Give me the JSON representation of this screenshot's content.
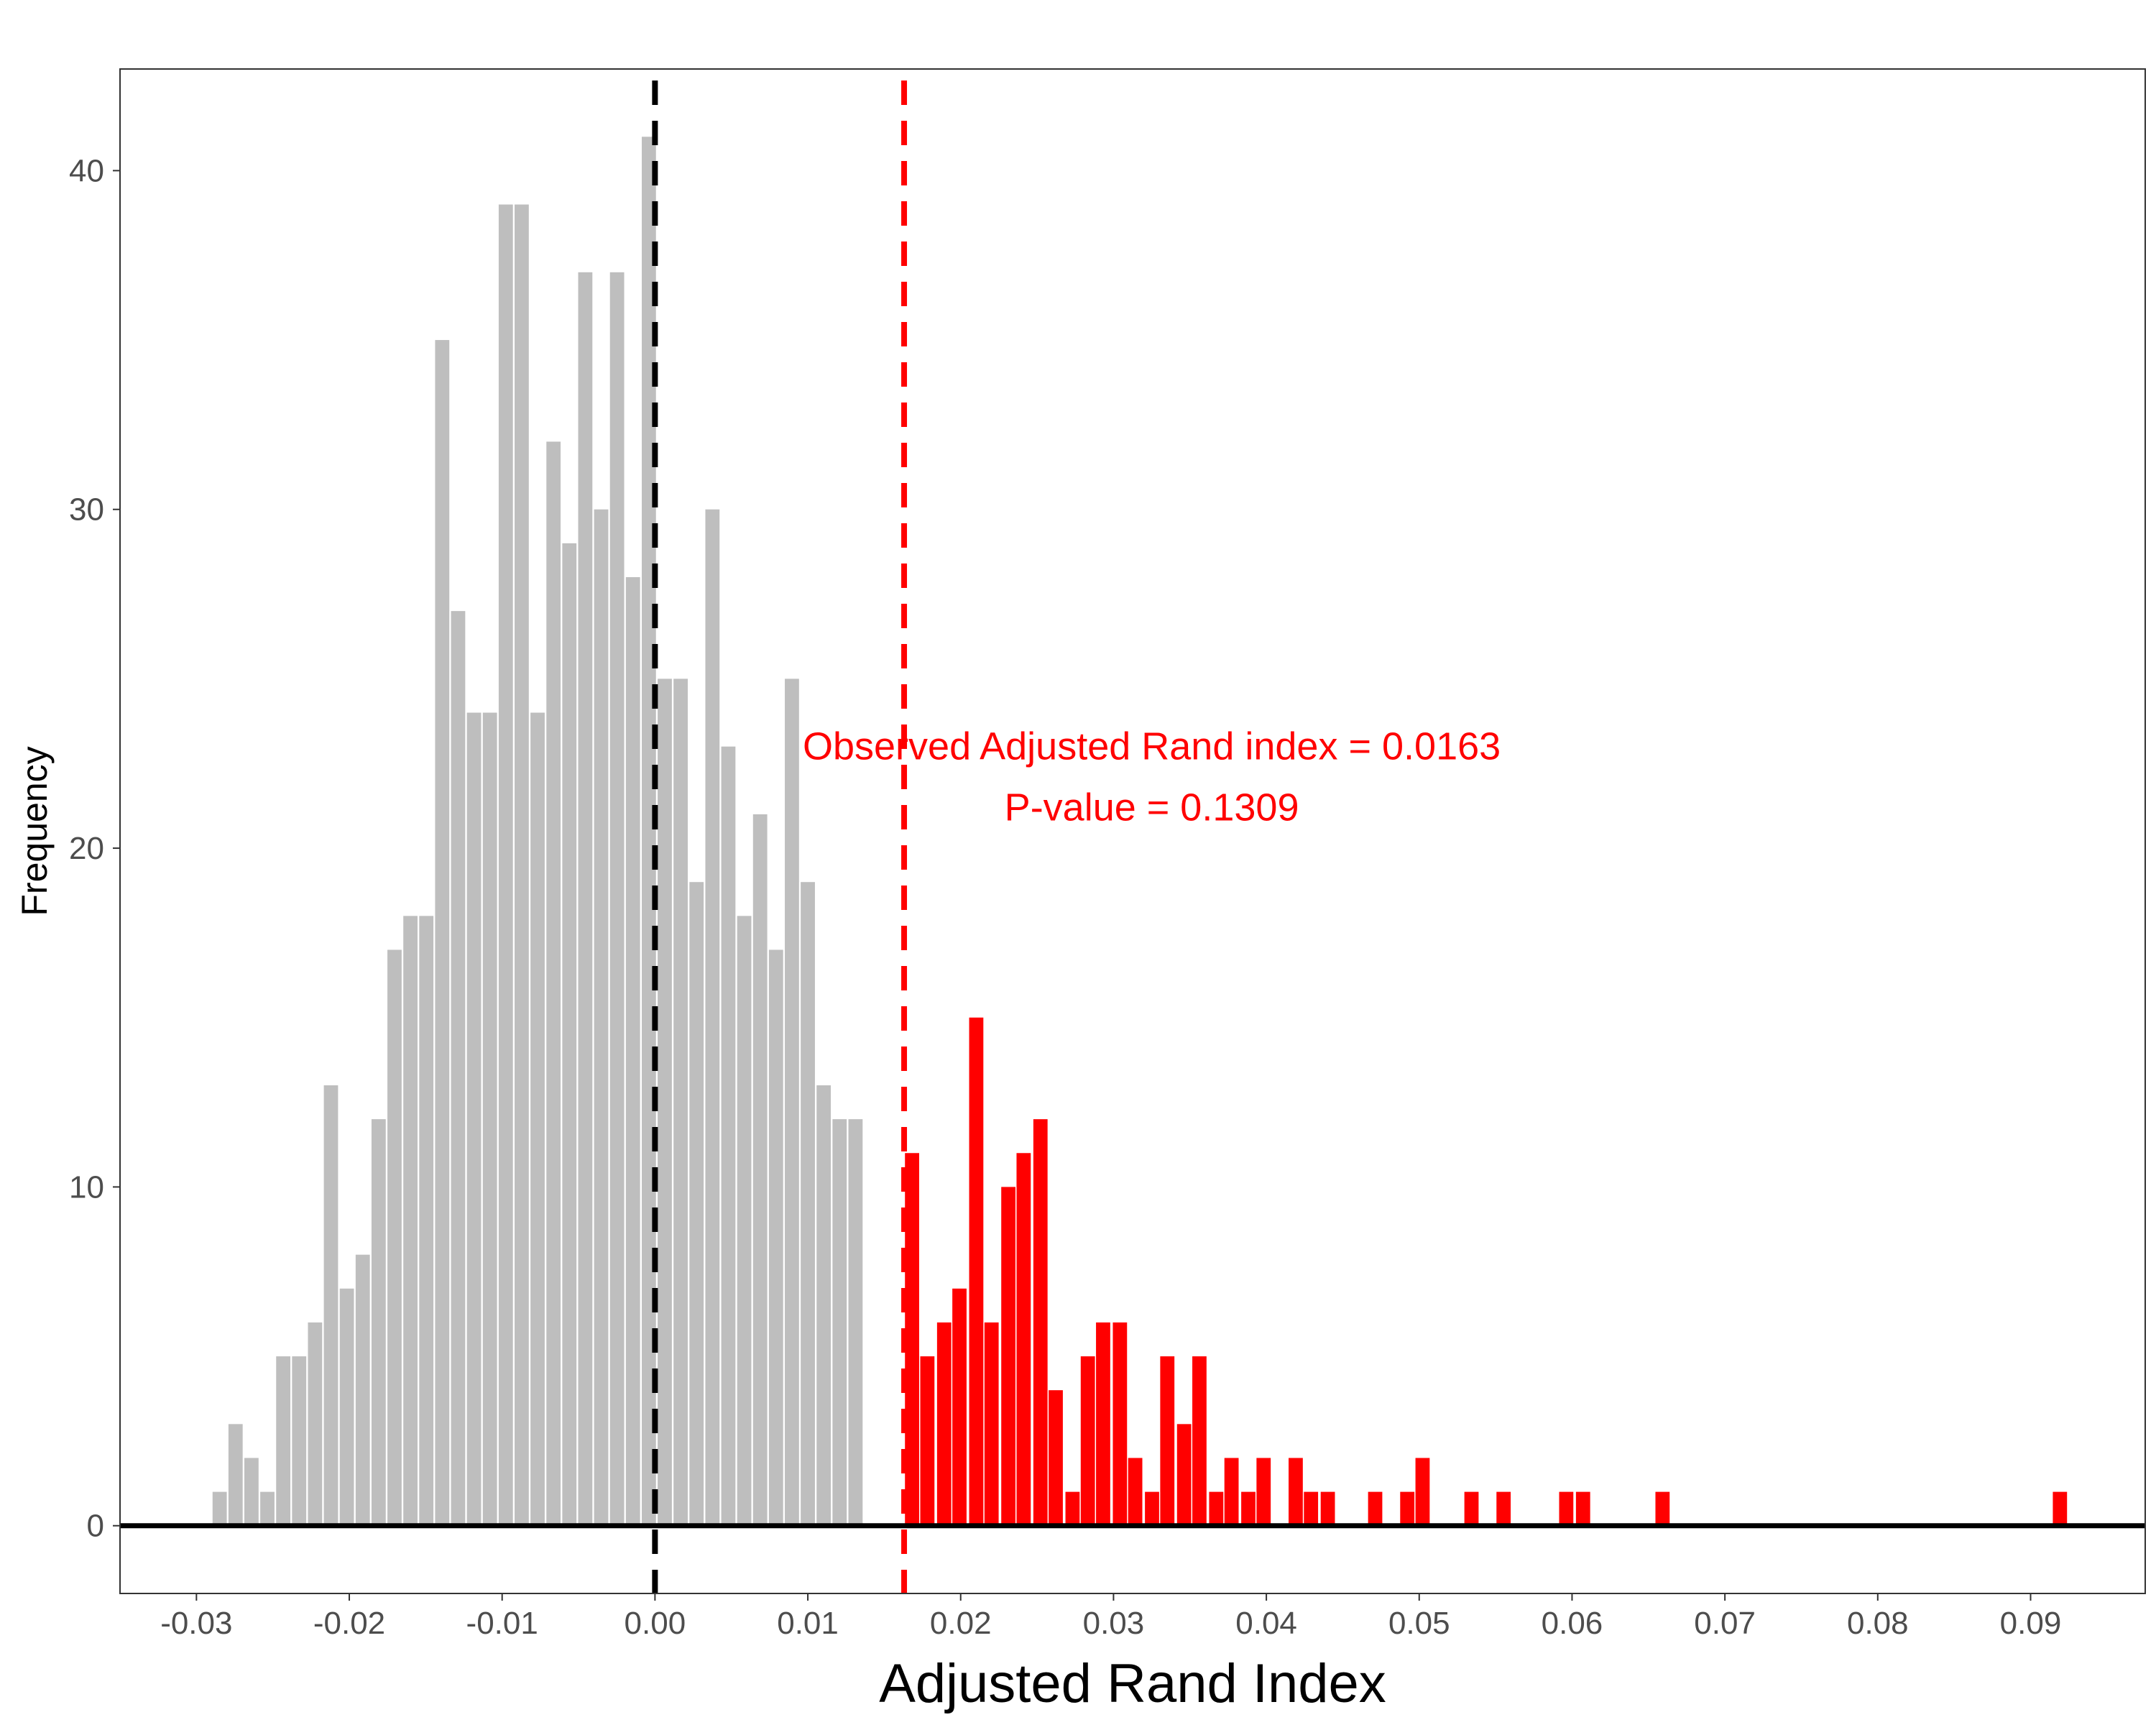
{
  "chart_data": {
    "type": "bar",
    "title": "",
    "xlabel": "Adjusted Rand Index",
    "ylabel": "Frequency",
    "xlim": [
      -0.035,
      0.0975
    ],
    "ylim": [
      -2,
      43
    ],
    "x_ticks": [
      -0.03,
      -0.02,
      -0.01,
      0.0,
      0.01,
      0.02,
      0.03,
      0.04,
      0.05,
      0.06,
      0.07,
      0.08,
      0.09
    ],
    "x_tick_labels": [
      "-0.03",
      "-0.02",
      "-0.01",
      "0.00",
      "0.01",
      "0.02",
      "0.03",
      "0.04",
      "0.05",
      "0.06",
      "0.07",
      "0.08",
      "0.09"
    ],
    "y_ticks": [
      0,
      10,
      20,
      30,
      40
    ],
    "y_tick_labels": [
      "0",
      "10",
      "20",
      "30",
      "40"
    ],
    "grid": false,
    "bin_start": -0.029,
    "bin_width": 0.00104,
    "series": [
      {
        "color": "#bebebe",
        "values": [
          1,
          3,
          2,
          1,
          5,
          5,
          6,
          13,
          7,
          8,
          12,
          17,
          18,
          18,
          35,
          27,
          24,
          24,
          39,
          39,
          24,
          32,
          29,
          37,
          30,
          37,
          28,
          41,
          25,
          25,
          19,
          30,
          23,
          18,
          21,
          17,
          25,
          19,
          13,
          12,
          12
        ]
      },
      {
        "color": "#ff0000",
        "bins": [
          {
            "x": 0.0163,
            "v": 11
          },
          {
            "x": 0.0173,
            "v": 5
          },
          {
            "x": 0.0184,
            "v": 6
          },
          {
            "x": 0.0194,
            "v": 7
          },
          {
            "x": 0.0205,
            "v": 15
          },
          {
            "x": 0.0215,
            "v": 6
          },
          {
            "x": 0.0226,
            "v": 10
          },
          {
            "x": 0.0236,
            "v": 11
          },
          {
            "x": 0.0247,
            "v": 12
          },
          {
            "x": 0.0257,
            "v": 4
          },
          {
            "x": 0.0268,
            "v": 1
          },
          {
            "x": 0.0278,
            "v": 5
          },
          {
            "x": 0.0288,
            "v": 6
          },
          {
            "x": 0.0299,
            "v": 6
          },
          {
            "x": 0.0309,
            "v": 2
          },
          {
            "x": 0.032,
            "v": 1
          },
          {
            "x": 0.033,
            "v": 5
          },
          {
            "x": 0.0341,
            "v": 3
          },
          {
            "x": 0.0351,
            "v": 5
          },
          {
            "x": 0.0362,
            "v": 1
          },
          {
            "x": 0.0372,
            "v": 2
          },
          {
            "x": 0.0383,
            "v": 1
          },
          {
            "x": 0.0393,
            "v": 2
          },
          {
            "x": 0.0414,
            "v": 2
          },
          {
            "x": 0.0424,
            "v": 1
          },
          {
            "x": 0.0435,
            "v": 1
          },
          {
            "x": 0.0466,
            "v": 1
          },
          {
            "x": 0.0487,
            "v": 1
          },
          {
            "x": 0.0497,
            "v": 2
          },
          {
            "x": 0.0529,
            "v": 1
          },
          {
            "x": 0.055,
            "v": 1
          },
          {
            "x": 0.0591,
            "v": 1
          },
          {
            "x": 0.0602,
            "v": 1
          },
          {
            "x": 0.0654,
            "v": 1
          },
          {
            "x": 0.0914,
            "v": 1
          }
        ]
      }
    ],
    "reference_lines": [
      {
        "x": 0.0,
        "color": "#000000",
        "dashed": true
      },
      {
        "x": 0.0163,
        "color": "#ff0000",
        "dashed": true
      }
    ],
    "annotations": [
      {
        "text": "Observed Adjusted Rand index = 0.0163",
        "color": "#ff0000",
        "x": 0.0325,
        "y": 23.0
      },
      {
        "text": "P-value = 0.1309",
        "color": "#ff0000",
        "x": 0.0325,
        "y": 21.2
      }
    ]
  }
}
